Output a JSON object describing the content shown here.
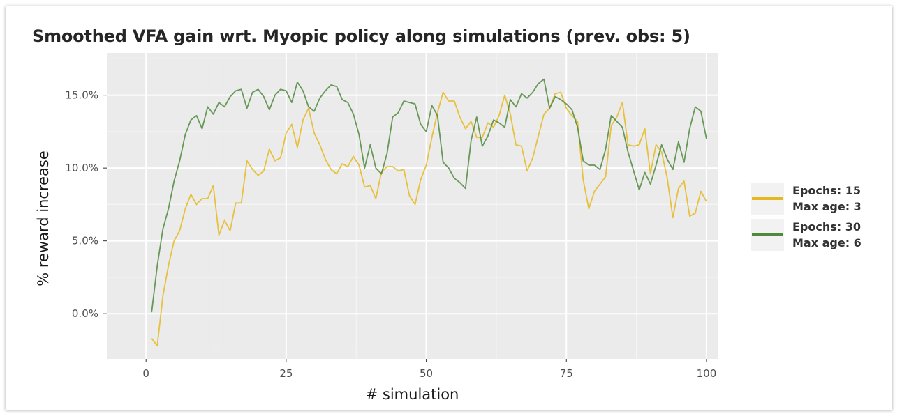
{
  "colors": {
    "panel_bg": "#ebebeb",
    "grid_major": "#ffffff",
    "series_1": "#e6b820",
    "series_2": "#4f8a3c"
  },
  "chart_data": {
    "type": "line",
    "title": "Smoothed VFA gain wrt. Myopic policy along simulations (prev. obs: 5)",
    "xlabel": "# simulation",
    "ylabel": "% reward increase",
    "xlim": [
      -7,
      102
    ],
    "ylim": [
      -3.1,
      17.9
    ],
    "x_ticks": [
      0,
      25,
      50,
      75,
      100
    ],
    "x_tick_labels": [
      "0",
      "25",
      "50",
      "75",
      "100"
    ],
    "y_ticks": [
      0,
      5,
      10,
      15
    ],
    "y_tick_labels": [
      "0.0%",
      "5.0%",
      "10.0%",
      "15.0%"
    ],
    "grid": true,
    "legend_position": "right",
    "x": [
      1,
      2,
      3,
      4,
      5,
      6,
      7,
      8,
      9,
      10,
      11,
      12,
      13,
      14,
      15,
      16,
      17,
      18,
      19,
      20,
      21,
      22,
      23,
      24,
      25,
      26,
      27,
      28,
      29,
      30,
      31,
      32,
      33,
      34,
      35,
      36,
      37,
      38,
      39,
      40,
      41,
      42,
      43,
      44,
      45,
      46,
      47,
      48,
      49,
      50,
      51,
      52,
      53,
      54,
      55,
      56,
      57,
      58,
      59,
      60,
      61,
      62,
      63,
      64,
      65,
      66,
      67,
      68,
      69,
      70,
      71,
      72,
      73,
      74,
      75,
      76,
      77,
      78,
      79,
      80,
      81,
      82,
      83,
      84,
      85,
      86,
      87,
      88,
      89,
      90,
      91,
      92,
      93,
      94,
      95,
      96,
      97,
      98,
      99,
      100
    ],
    "series": [
      {
        "name": "Epochs: 15\nMax age: 3",
        "legend_lines": [
          "Epochs: 15",
          "Max age: 3"
        ],
        "color": "#e6b820",
        "values": [
          -1.7,
          -2.2,
          1.2,
          3.3,
          5.0,
          5.7,
          7.2,
          8.2,
          7.5,
          7.9,
          7.9,
          8.8,
          5.4,
          6.4,
          5.7,
          7.6,
          7.6,
          10.5,
          9.9,
          9.5,
          9.8,
          11.3,
          10.5,
          10.7,
          12.4,
          13.0,
          11.4,
          13.3,
          14.1,
          12.4,
          11.6,
          10.6,
          9.9,
          9.6,
          10.3,
          10.1,
          10.8,
          10.2,
          8.7,
          8.8,
          7.9,
          9.7,
          10.1,
          10.1,
          9.8,
          9.9,
          8.1,
          7.5,
          9.2,
          10.2,
          12.1,
          13.8,
          15.2,
          14.6,
          14.6,
          13.5,
          12.7,
          13.2,
          12.1,
          12.1,
          13.1,
          12.8,
          13.6,
          15.0,
          13.7,
          11.6,
          11.5,
          9.8,
          10.7,
          12.2,
          13.7,
          14.1,
          15.1,
          15.2,
          14.1,
          13.6,
          13.2,
          9.2,
          7.2,
          8.4,
          8.9,
          9.4,
          12.9,
          13.5,
          14.5,
          11.6,
          11.5,
          11.6,
          12.7,
          9.6,
          11.6,
          11.1,
          9.3,
          6.6,
          8.6,
          9.1,
          6.7,
          6.9,
          8.4,
          7.7
        ]
      },
      {
        "name": "Epochs: 30\nMax age: 6",
        "legend_lines": [
          "Epochs: 30",
          "Max age: 6"
        ],
        "color": "#4f8a3c",
        "values": [
          0.1,
          3.3,
          5.8,
          7.2,
          9.1,
          10.5,
          12.3,
          13.3,
          13.6,
          12.7,
          14.2,
          13.7,
          14.5,
          14.2,
          14.9,
          15.3,
          15.4,
          14.1,
          15.2,
          15.4,
          14.9,
          14.0,
          15.0,
          15.4,
          15.3,
          14.5,
          15.9,
          15.3,
          14.2,
          13.9,
          14.8,
          15.3,
          15.7,
          15.6,
          14.7,
          14.5,
          13.7,
          12.3,
          10.0,
          11.6,
          10.0,
          9.6,
          11.0,
          13.5,
          13.8,
          14.6,
          14.5,
          14.4,
          13.0,
          12.5,
          14.3,
          13.6,
          10.4,
          10.0,
          9.3,
          9.0,
          8.6,
          11.9,
          13.5,
          11.5,
          12.2,
          13.3,
          13.1,
          12.8,
          14.7,
          14.2,
          15.1,
          14.8,
          15.2,
          15.8,
          16.1,
          14.1,
          14.9,
          14.7,
          14.4,
          14.0,
          12.8,
          10.5,
          10.2,
          10.2,
          9.9,
          11.3,
          13.6,
          13.2,
          12.8,
          11.1,
          9.8,
          8.5,
          9.7,
          8.9,
          10.2,
          11.6,
          10.6,
          9.9,
          11.8,
          10.4,
          12.7,
          14.2,
          13.9,
          12.0
        ]
      }
    ]
  }
}
